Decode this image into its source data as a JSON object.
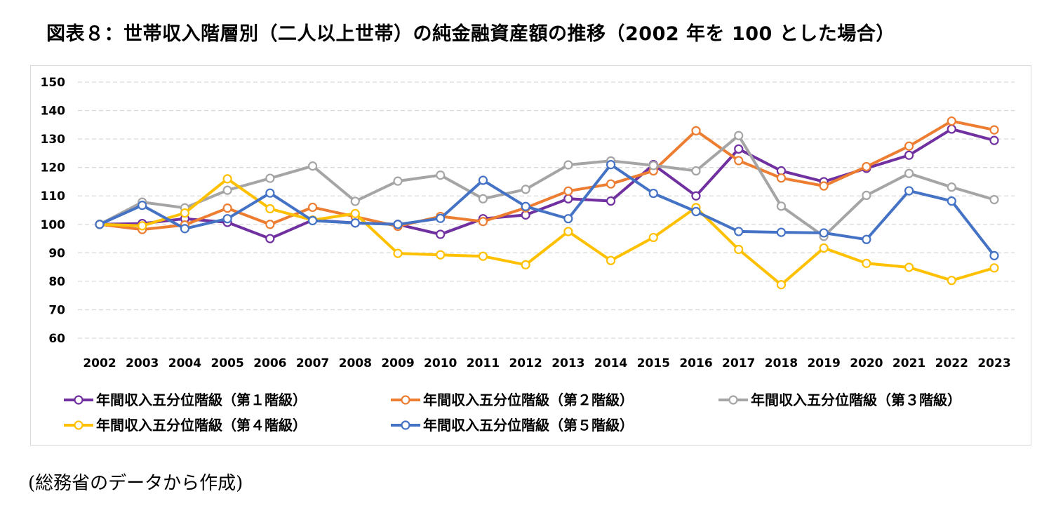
{
  "title": "図表８：世帯収入階層別（二人以上世帯）の純金融資産額の推移（2002 年を 100 とした場合）",
  "source": "(総務省のデータから作成)",
  "chart_data": {
    "type": "line",
    "title": "図表８：世帯収入階層別（二人以上世帯）の純金融資産額の推移（2002 年を 100 とした場合）",
    "xlabel": "",
    "ylabel": "",
    "ylim": [
      60,
      150
    ],
    "yticks": [
      60,
      70,
      80,
      90,
      100,
      110,
      120,
      130,
      140,
      150
    ],
    "grid": "horizontal-dashed",
    "legend_position": "bottom",
    "categories": [
      "2002",
      "2003",
      "2004",
      "2005",
      "2006",
      "2007",
      "2008",
      "2009",
      "2010",
      "2011",
      "2012",
      "2013",
      "2014",
      "2015",
      "2016",
      "2017",
      "2018",
      "2019",
      "2020",
      "2021",
      "2022",
      "2023"
    ],
    "series": [
      {
        "name": "年間収入五分位階級（第１階級）",
        "color": "#7030a0",
        "values": [
          100,
          100.3,
          102,
          100.7,
          95,
          101.5,
          100.5,
          100,
          96.5,
          102,
          103.3,
          109,
          108.2,
          121,
          110,
          126.5,
          118.8,
          115,
          119.7,
          124.3,
          133.5,
          129.5
        ]
      },
      {
        "name": "年間収入五分位階級（第２階級）",
        "color": "#ed7d31",
        "values": [
          100,
          98.2,
          99.8,
          105.7,
          100,
          106,
          102.7,
          99.3,
          102.8,
          101,
          105.8,
          111.7,
          114.2,
          118.8,
          132.9,
          122.4,
          116.3,
          113.5,
          120.3,
          127.5,
          136.3,
          133.2
        ]
      },
      {
        "name": "年間収入五分位階級（第３階級）",
        "color": "#a5a5a5",
        "values": [
          100,
          107.8,
          105.8,
          112,
          116.2,
          120.5,
          108.1,
          115.2,
          117.3,
          109,
          112.3,
          120.9,
          122.3,
          120.7,
          118.8,
          131.2,
          106.4,
          95.8,
          110.2,
          117.9,
          113.1,
          108.7
        ]
      },
      {
        "name": "年間収入五分位階級（第４階級）",
        "color": "#ffc000",
        "values": [
          100,
          99.5,
          104,
          116,
          105.5,
          101.5,
          103.8,
          89.8,
          89.3,
          88.8,
          85.8,
          97.5,
          87.3,
          95.4,
          105.9,
          91.2,
          78.8,
          91.7,
          86.3,
          84.9,
          80.3,
          84.7
        ]
      },
      {
        "name": "年間収入五分位階級（第５階級）",
        "color": "#4472c4",
        "values": [
          100,
          106.7,
          98.5,
          102,
          111,
          101.3,
          100.5,
          100,
          102.1,
          115.5,
          106.3,
          102,
          121,
          110.9,
          104.5,
          97.5,
          97.2,
          97,
          94.7,
          111.8,
          108.2,
          89
        ]
      }
    ]
  }
}
